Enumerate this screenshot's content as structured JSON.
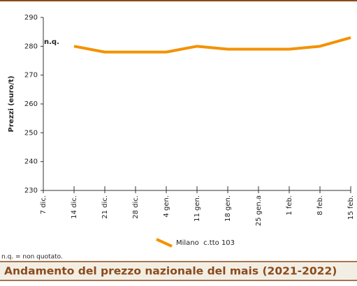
{
  "chart_data": {
    "type": "line",
    "title": "Andamento del prezzo nazionale del mais (2021-2022)",
    "y_label": "Prezzi (euro/t)",
    "annotation": "n.q.",
    "footnote": "n.q. = non quotato.",
    "categories": [
      "7 dic.",
      "14 dic.",
      "21 dic.",
      "28 dic.",
      "4 gen.",
      "11 gen.",
      "18 gen.",
      "25 gen.a",
      "1 feb.",
      "8 feb.",
      "15 feb."
    ],
    "series": [
      {
        "name": "Milano  c.tto 103",
        "color": "#f39200",
        "values": [
          null,
          280,
          278,
          278,
          278,
          280,
          279,
          279,
          279,
          280,
          283
        ]
      }
    ],
    "ylim": [
      230,
      290
    ],
    "yticks": [
      230,
      240,
      250,
      260,
      270,
      280,
      290
    ],
    "grid": false
  }
}
